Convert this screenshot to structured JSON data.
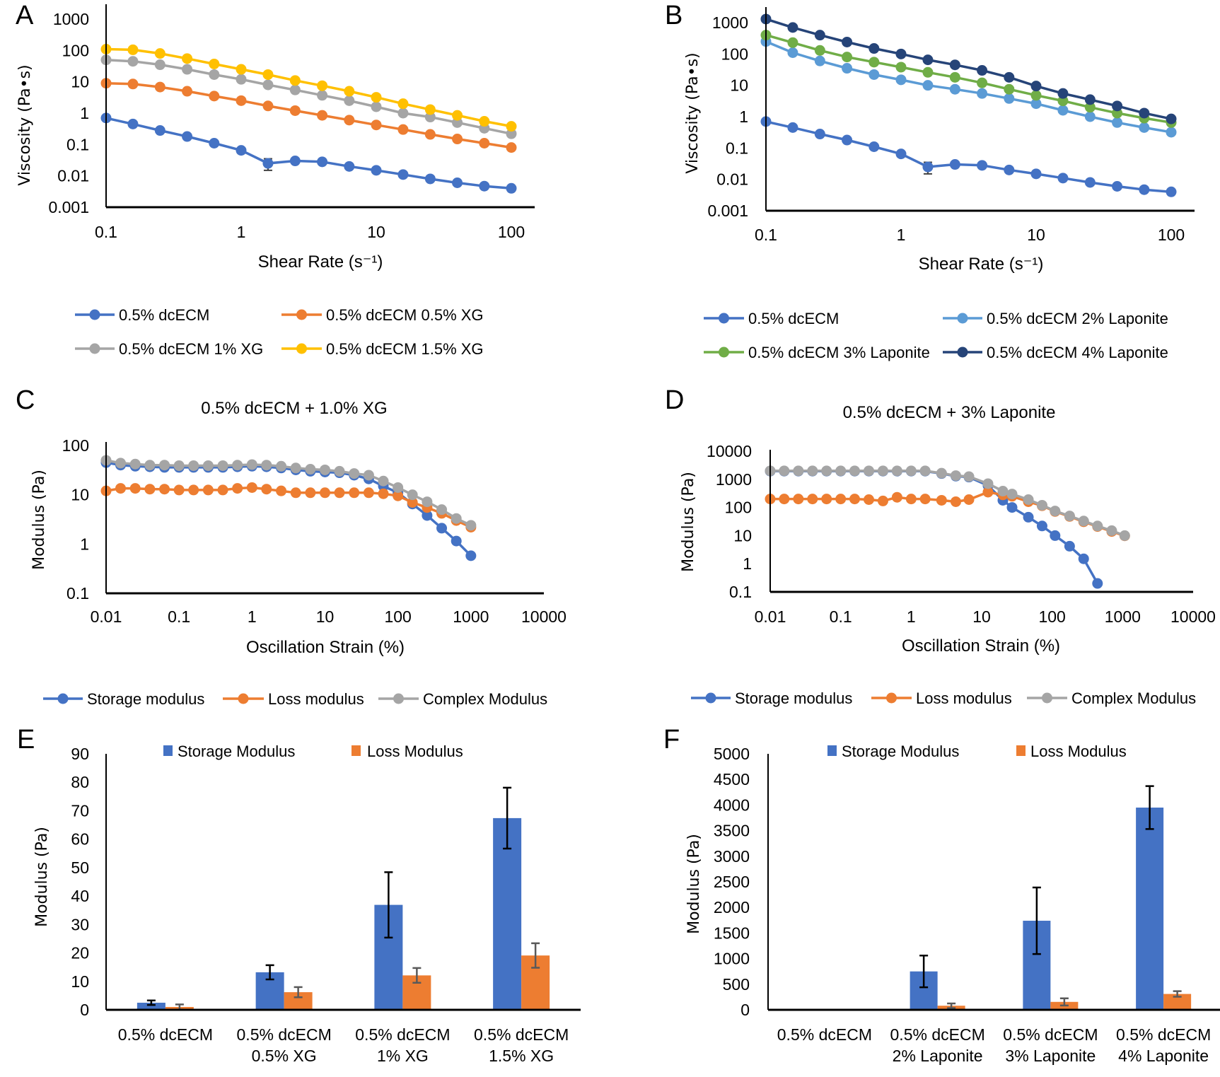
{
  "chart_data": [
    {
      "panel": "A",
      "type": "line",
      "x_scale": "log",
      "y_scale": "log",
      "title": "",
      "xlabel": "Shear Rate (s⁻¹)",
      "ylabel": "Viscosity (Pa•s)",
      "xlim": [
        0.1,
        100
      ],
      "ylim": [
        0.001,
        1000
      ],
      "grid": false,
      "legend": "bottom",
      "x_tick_labels": [
        "0.1",
        "1",
        "10",
        "100"
      ],
      "y_tick_labels": [
        "0.001",
        "0.01",
        "0.1",
        "1",
        "10",
        "100",
        "1000"
      ],
      "x": [
        0.1,
        0.158,
        0.251,
        0.398,
        0.631,
        1,
        1.58,
        2.51,
        3.98,
        6.31,
        10,
        15.8,
        25.1,
        39.8,
        63.1,
        100
      ],
      "series": [
        {
          "name": "0.5% dcECM",
          "color": "#4472C4",
          "values": [
            0.7,
            0.45,
            0.28,
            0.18,
            0.11,
            0.065,
            0.025,
            0.03,
            0.028,
            0.02,
            0.015,
            0.011,
            0.008,
            0.006,
            0.0047,
            0.004
          ],
          "errors": [
            null,
            null,
            null,
            null,
            null,
            0.012,
            0.01,
            null,
            null,
            null,
            null,
            null,
            null,
            null,
            null,
            null
          ]
        },
        {
          "name": "0.5% dcECM 0.5% XG",
          "color": "#ED7D31",
          "values": [
            9,
            8.5,
            6.8,
            5,
            3.5,
            2.5,
            1.7,
            1.2,
            0.85,
            0.6,
            0.42,
            0.3,
            0.21,
            0.15,
            0.11,
            0.08
          ]
        },
        {
          "name": "0.5% dcECM 1% XG",
          "color": "#A5A5A5",
          "values": [
            50,
            45,
            35,
            25,
            17,
            12,
            8,
            5.5,
            3.7,
            2.5,
            1.6,
            1.0,
            0.75,
            0.5,
            0.33,
            0.22
          ]
        },
        {
          "name": "0.5% dcECM 1.5% XG",
          "color": "#FFC000",
          "values": [
            110,
            105,
            80,
            55,
            37,
            25,
            17,
            11,
            7.5,
            5,
            3.2,
            2,
            1.3,
            0.85,
            0.55,
            0.38
          ]
        }
      ]
    },
    {
      "panel": "B",
      "type": "line",
      "x_scale": "log",
      "y_scale": "log",
      "title": "",
      "xlabel": "Shear Rate (s⁻¹)",
      "ylabel": "Viscosity (Pa•s)",
      "xlim": [
        0.1,
        100
      ],
      "ylim": [
        0.001,
        1000
      ],
      "grid": false,
      "legend": "bottom",
      "x_tick_labels": [
        "0.1",
        "1",
        "10",
        "100"
      ],
      "y_tick_labels": [
        "0.001",
        "0.01",
        "0.1",
        "1",
        "10",
        "100",
        "1000"
      ],
      "x": [
        0.1,
        0.158,
        0.251,
        0.398,
        0.631,
        1,
        1.58,
        2.51,
        3.98,
        6.31,
        10,
        15.8,
        25.1,
        39.8,
        63.1,
        100
      ],
      "series": [
        {
          "name": "0.5% dcECM",
          "color": "#4472C4",
          "values": [
            0.7,
            0.45,
            0.28,
            0.18,
            0.11,
            0.065,
            0.025,
            0.03,
            0.028,
            0.02,
            0.015,
            0.011,
            0.008,
            0.006,
            0.0047,
            0.004
          ],
          "errors": [
            null,
            null,
            null,
            null,
            null,
            0.012,
            0.01,
            null,
            null,
            null,
            null,
            null,
            null,
            null,
            null,
            null
          ]
        },
        {
          "name": "0.5% dcECM 2% Laponite",
          "color": "#5B9BD5",
          "values": [
            250,
            110,
            60,
            35,
            22,
            15,
            10,
            7.5,
            5.5,
            3.8,
            2.6,
            1.6,
            1.0,
            0.65,
            0.45,
            0.32
          ]
        },
        {
          "name": "0.5% dcECM 3% Laponite",
          "color": "#70AD47",
          "values": [
            400,
            230,
            130,
            80,
            55,
            38,
            26,
            18,
            12,
            7.5,
            4.8,
            3.2,
            2,
            1.3,
            0.9,
            0.65
          ]
        },
        {
          "name": "0.5% dcECM 4% Laponite",
          "color": "#264478",
          "values": [
            1300,
            700,
            400,
            240,
            150,
            100,
            65,
            45,
            30,
            18,
            9.5,
            5.5,
            3.5,
            2.2,
            1.3,
            0.85
          ]
        }
      ]
    },
    {
      "panel": "C",
      "type": "line",
      "x_scale": "log",
      "y_scale": "log",
      "title": "0.5% dcECM + 1.0% XG",
      "xlabel": "Oscillation Strain (%)",
      "ylabel": "Modulus (Pa)",
      "xlim": [
        0.01,
        10000
      ],
      "ylim": [
        0.1,
        100
      ],
      "grid": false,
      "legend": "bottom",
      "x_tick_labels": [
        "0.01",
        "0.1",
        "1",
        "10",
        "100",
        "1000",
        "10000"
      ],
      "y_tick_labels": [
        "0.1",
        "1",
        "10",
        "100"
      ],
      "x": [
        0.01,
        0.0158,
        0.0251,
        0.0398,
        0.0631,
        0.1,
        0.158,
        0.251,
        0.398,
        0.631,
        1,
        1.58,
        2.51,
        3.98,
        6.31,
        10,
        15.8,
        25.1,
        39.8,
        63.1,
        100,
        158,
        251,
        398,
        631,
        1000
      ],
      "series": [
        {
          "name": "Storage modulus",
          "color": "#4472C4",
          "values": [
            45,
            40,
            38,
            37,
            36,
            36,
            36,
            36,
            36,
            37,
            38,
            37,
            35,
            32,
            30,
            29,
            28,
            25,
            21,
            15,
            11,
            6.5,
            3.8,
            2.1,
            1.15,
            0.58
          ]
        },
        {
          "name": "Loss modulus",
          "color": "#ED7D31",
          "values": [
            12,
            13.5,
            13.5,
            13,
            13,
            12.5,
            12.5,
            12.5,
            12.5,
            13.5,
            14,
            13,
            12,
            11,
            11,
            11,
            11,
            11,
            11,
            10.5,
            9.5,
            7,
            5.5,
            4.2,
            3,
            2.2
          ]
        },
        {
          "name": "Complex Modulus",
          "color": "#A5A5A5",
          "values": [
            50,
            44,
            42,
            40,
            40,
            39,
            39,
            39,
            39,
            40,
            41,
            40,
            38,
            35,
            33,
            32,
            30,
            27,
            25,
            19,
            14,
            10,
            7.2,
            5,
            3.3,
            2.4
          ]
        }
      ]
    },
    {
      "panel": "D",
      "type": "line",
      "x_scale": "log",
      "y_scale": "log",
      "title": "0.5% dcECM + 3% Laponite",
      "xlabel": "Oscillation Strain (%)",
      "ylabel": "Modulus (Pa)",
      "xlim": [
        0.01,
        10000
      ],
      "ylim": [
        0.1,
        10000
      ],
      "grid": false,
      "legend": "bottom",
      "x_tick_labels": [
        "0.01",
        "0.1",
        "1",
        "10",
        "100",
        "1000",
        "10000"
      ],
      "y_tick_labels": [
        "0.1",
        "1",
        "10",
        "100",
        "1000",
        "10000"
      ],
      "x": [
        0.01,
        0.0158,
        0.0251,
        0.0398,
        0.0631,
        0.1,
        0.158,
        0.251,
        0.398,
        0.631,
        1,
        1.58,
        2.7,
        4.3,
        6.6,
        12.3,
        20,
        27,
        46,
        72,
        110,
        177,
        280,
        440,
        700,
        1070
      ],
      "series": [
        {
          "name": "Storage modulus",
          "color": "#4472C4",
          "values": [
            1950,
            1950,
            1950,
            1950,
            1950,
            1950,
            1950,
            1950,
            1950,
            1950,
            1950,
            1950,
            1600,
            1300,
            1200,
            600,
            180,
            100,
            45,
            22,
            10,
            4.2,
            1.5,
            0.2,
            null,
            null
          ]
        },
        {
          "name": "Loss modulus",
          "color": "#ED7D31",
          "values": [
            200,
            200,
            200,
            200,
            200,
            200,
            200,
            190,
            170,
            230,
            200,
            200,
            180,
            160,
            190,
            350,
            280,
            250,
            160,
            115,
            72,
            48,
            31,
            21,
            14,
            9.8
          ]
        },
        {
          "name": "Complex Modulus",
          "color": "#A5A5A5",
          "values": [
            2000,
            2000,
            2000,
            2000,
            2000,
            2000,
            2000,
            2000,
            2000,
            2000,
            2000,
            2000,
            1650,
            1350,
            1250,
            700,
            380,
            300,
            190,
            120,
            75,
            50,
            33,
            22,
            15,
            10
          ]
        }
      ]
    },
    {
      "panel": "E",
      "type": "bar",
      "title": "",
      "xlabel": "",
      "ylabel": "Modulus (Pa)",
      "ylim": [
        0,
        90
      ],
      "grid": false,
      "legend": "top",
      "y_tick_labels": [
        "0",
        "10",
        "20",
        "30",
        "40",
        "50",
        "60",
        "70",
        "80",
        "90"
      ],
      "categories": [
        [
          "0.5% dcECM"
        ],
        [
          "0.5% dcECM",
          "0.5% XG"
        ],
        [
          "0.5% dcECM",
          "1% XG"
        ],
        [
          "0.5% dcECM",
          "1.5% XG"
        ]
      ],
      "series": [
        {
          "name": "Storage Modulus",
          "color": "#4472C4",
          "values": [
            2.5,
            13.2,
            36.9,
            67.4
          ],
          "errors": [
            0.8,
            2.5,
            11.5,
            10.7
          ],
          "error_color": "#000000"
        },
        {
          "name": "Loss Modulus",
          "color": "#ED7D31",
          "values": [
            1.0,
            6.2,
            12.1,
            19.1
          ],
          "errors": [
            0.9,
            1.8,
            2.6,
            4.3
          ],
          "error_color": "#595959"
        }
      ]
    },
    {
      "panel": "F",
      "type": "bar",
      "title": "",
      "xlabel": "",
      "ylabel": "Modulus (Pa)",
      "ylim": [
        0,
        5000
      ],
      "grid": false,
      "legend": "top",
      "y_tick_labels": [
        "0",
        "500",
        "1000",
        "1500",
        "2000",
        "2500",
        "3000",
        "3500",
        "4000",
        "4500",
        "5000"
      ],
      "categories": [
        [
          "0.5% dcECM"
        ],
        [
          "0.5% dcECM",
          "2% Laponite"
        ],
        [
          "0.5% dcECM",
          "3% Laponite"
        ],
        [
          "0.5% dcECM",
          "4% Laponite"
        ]
      ],
      "series": [
        {
          "name": "Storage Modulus",
          "color": "#4472C4",
          "values": [
            2.5,
            750,
            1740,
            3950
          ],
          "errors": [
            0,
            310,
            650,
            420
          ],
          "error_color": "#000000"
        },
        {
          "name": "Loss Modulus",
          "color": "#ED7D31",
          "values": [
            1,
            80,
            155,
            310
          ],
          "errors": [
            0,
            45,
            70,
            55
          ],
          "error_color": "#595959"
        }
      ]
    }
  ]
}
